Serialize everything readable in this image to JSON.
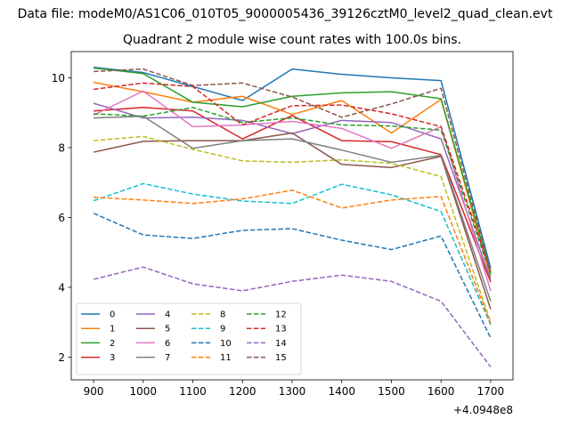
{
  "chart_data": {
    "type": "line",
    "suptitle": "Data file: modeM0/AS1C06_010T05_9000005436_39126cztM0_level2_quad_clean.evt",
    "title": "Quadrant 2 module wise count rates with 100.0s bins.",
    "xlabel": "",
    "ylabel": "",
    "x_offset_label": "+4.0948e8",
    "x": [
      900,
      1000,
      1100,
      1200,
      1300,
      1400,
      1500,
      1600,
      1700
    ],
    "xlim": [
      855,
      1745
    ],
    "ylim": [
      1.35,
      10.75
    ],
    "xticks": [
      900,
      1000,
      1100,
      1200,
      1300,
      1400,
      1500,
      1600,
      1700
    ],
    "yticks": [
      2,
      4,
      6,
      8,
      10
    ],
    "grid": false,
    "legend_position": "lower-left",
    "legend_columns": 4,
    "series": [
      {
        "name": "0",
        "color": "#1f77b4",
        "dash": "solid",
        "values": [
          10.3,
          10.15,
          9.75,
          9.35,
          10.25,
          10.1,
          10.0,
          9.92,
          4.55
        ]
      },
      {
        "name": "1",
        "color": "#ff7f0e",
        "dash": "solid",
        "values": [
          9.87,
          9.6,
          9.3,
          9.47,
          8.95,
          9.35,
          8.42,
          9.38,
          4.3
        ]
      },
      {
        "name": "2",
        "color": "#2ca02c",
        "dash": "solid",
        "values": [
          10.28,
          10.12,
          9.3,
          9.17,
          9.47,
          9.57,
          9.6,
          9.4,
          4.42
        ]
      },
      {
        "name": "3",
        "color": "#d62728",
        "dash": "solid",
        "values": [
          9.05,
          9.15,
          9.05,
          8.25,
          8.92,
          8.2,
          8.17,
          7.8,
          4.15
        ]
      },
      {
        "name": "4",
        "color": "#9467bd",
        "dash": "solid",
        "values": [
          9.27,
          8.85,
          8.87,
          8.78,
          8.4,
          8.78,
          8.72,
          8.25,
          4.22
        ]
      },
      {
        "name": "5",
        "color": "#8c564b",
        "dash": "solid",
        "values": [
          7.87,
          8.18,
          8.2,
          8.2,
          8.42,
          7.52,
          7.43,
          7.75,
          3.37
        ]
      },
      {
        "name": "6",
        "color": "#e377c2",
        "dash": "solid",
        "values": [
          8.93,
          9.62,
          8.6,
          8.65,
          8.75,
          8.55,
          7.98,
          8.6,
          3.9
        ]
      },
      {
        "name": "7",
        "color": "#7f7f7f",
        "dash": "solid",
        "values": [
          8.85,
          8.9,
          7.98,
          8.2,
          8.25,
          7.93,
          7.58,
          7.78,
          3.6
        ]
      },
      {
        "name": "8",
        "color": "#bcbd22",
        "dash": "dashed",
        "values": [
          8.2,
          8.32,
          7.95,
          7.62,
          7.58,
          7.65,
          7.55,
          7.17,
          3.0
        ]
      },
      {
        "name": "9",
        "color": "#17becf",
        "dash": "dashed",
        "values": [
          6.48,
          6.97,
          6.67,
          6.47,
          6.4,
          6.95,
          6.65,
          6.17,
          2.93
        ]
      },
      {
        "name": "10",
        "color": "#1f77b4",
        "dash": "dashed",
        "values": [
          6.12,
          5.5,
          5.4,
          5.63,
          5.68,
          5.35,
          5.08,
          5.47,
          2.55
        ]
      },
      {
        "name": "11",
        "color": "#ff7f0e",
        "dash": "dashed",
        "values": [
          6.58,
          6.5,
          6.4,
          6.53,
          6.78,
          6.27,
          6.5,
          6.6,
          2.97
        ]
      },
      {
        "name": "12",
        "color": "#2ca02c",
        "dash": "dashed",
        "values": [
          8.97,
          8.9,
          9.15,
          8.72,
          8.85,
          8.65,
          8.62,
          8.5,
          4.37
        ]
      },
      {
        "name": "13",
        "color": "#d62728",
        "dash": "dashed",
        "values": [
          9.67,
          9.85,
          9.75,
          8.65,
          9.2,
          9.22,
          8.97,
          8.6,
          4.47
        ]
      },
      {
        "name": "14",
        "color": "#9467bd",
        "dash": "dashed",
        "values": [
          4.23,
          4.58,
          4.1,
          3.9,
          4.17,
          4.35,
          4.17,
          3.6,
          1.72
        ]
      },
      {
        "name": "15",
        "color": "#8c564b",
        "dash": "dashed",
        "values": [
          10.18,
          10.25,
          9.78,
          9.85,
          9.45,
          8.87,
          9.25,
          9.7,
          4.45
        ]
      }
    ]
  }
}
